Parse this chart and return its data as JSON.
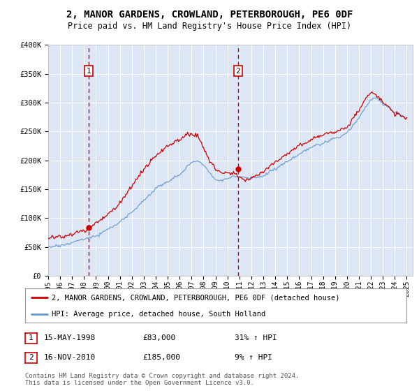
{
  "title": "2, MANOR GARDENS, CROWLAND, PETERBOROUGH, PE6 0DF",
  "subtitle": "Price paid vs. HM Land Registry's House Price Index (HPI)",
  "title_fontsize": 10,
  "subtitle_fontsize": 8.5,
  "plot_bg_color": "#dce6f5",
  "ylim": [
    0,
    400000
  ],
  "xlim": [
    1995.0,
    2025.5
  ],
  "yticks": [
    0,
    50000,
    100000,
    150000,
    200000,
    250000,
    300000,
    350000,
    400000
  ],
  "ytick_labels": [
    "£0",
    "£50K",
    "£100K",
    "£150K",
    "£200K",
    "£250K",
    "£300K",
    "£350K",
    "£400K"
  ],
  "sale1_x": 1998.37,
  "sale1_y": 83000,
  "sale1_label": "1",
  "sale1_date": "15-MAY-1998",
  "sale1_price": "£83,000",
  "sale1_hpi": "31% ↑ HPI",
  "sale2_x": 2010.88,
  "sale2_y": 185000,
  "sale2_label": "2",
  "sale2_date": "16-NOV-2010",
  "sale2_price": "£185,000",
  "sale2_hpi": "9% ↑ HPI",
  "red_color": "#cc0000",
  "blue_color": "#6699cc",
  "dashed_color": "#cc0000",
  "legend_label_red": "2, MANOR GARDENS, CROWLAND, PETERBOROUGH, PE6 0DF (detached house)",
  "legend_label_blue": "HPI: Average price, detached house, South Holland",
  "footer": "Contains HM Land Registry data © Crown copyright and database right 2024.\nThis data is licensed under the Open Government Licence v3.0."
}
